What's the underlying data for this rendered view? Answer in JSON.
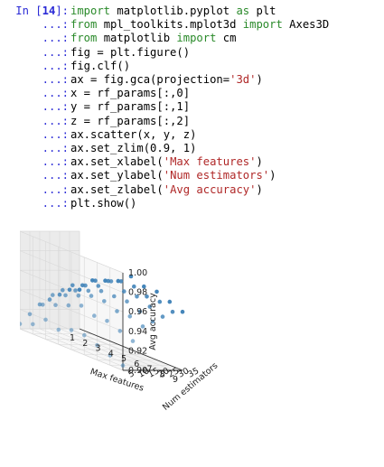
{
  "cell": {
    "input_prompt_prefix": "In [",
    "input_number": "14",
    "input_prompt_suffix": "]:",
    "continuation_prompt": "...:",
    "lines": [
      {
        "parts": [
          {
            "t": "import",
            "c": "kw"
          },
          {
            "t": " matplotlib.pyplot ",
            "c": ""
          },
          {
            "t": "as",
            "c": "kw"
          },
          {
            "t": " plt",
            "c": ""
          }
        ]
      },
      {
        "parts": [
          {
            "t": "from",
            "c": "kw"
          },
          {
            "t": " mpl_toolkits.mplot3d ",
            "c": ""
          },
          {
            "t": "import",
            "c": "kw"
          },
          {
            "t": " Axes3D",
            "c": ""
          }
        ]
      },
      {
        "parts": [
          {
            "t": "from",
            "c": "kw"
          },
          {
            "t": " matplotlib ",
            "c": ""
          },
          {
            "t": "import",
            "c": "kw"
          },
          {
            "t": " cm",
            "c": ""
          }
        ]
      },
      {
        "parts": [
          {
            "t": "fig = plt.figure()",
            "c": ""
          }
        ]
      },
      {
        "parts": [
          {
            "t": "fig.clf()",
            "c": ""
          }
        ]
      },
      {
        "parts": [
          {
            "t": "ax = fig.gca(projection=",
            "c": ""
          },
          {
            "t": "'3d'",
            "c": "str"
          },
          {
            "t": ")",
            "c": ""
          }
        ]
      },
      {
        "parts": [
          {
            "t": "x = rf_params[:,0]",
            "c": ""
          }
        ]
      },
      {
        "parts": [
          {
            "t": "y = rf_params[:,1]",
            "c": ""
          }
        ]
      },
      {
        "parts": [
          {
            "t": "z = rf_params[:,2]",
            "c": ""
          }
        ]
      },
      {
        "parts": [
          {
            "t": "ax.scatter(x, y, z)",
            "c": ""
          }
        ]
      },
      {
        "parts": [
          {
            "t": "ax.set_zlim(0.9, 1)",
            "c": ""
          }
        ]
      },
      {
        "parts": [
          {
            "t": "ax.set_xlabel(",
            "c": ""
          },
          {
            "t": "'Max features'",
            "c": "str"
          },
          {
            "t": ")",
            "c": ""
          }
        ]
      },
      {
        "parts": [
          {
            "t": "ax.set_ylabel(",
            "c": ""
          },
          {
            "t": "'Num estimators'",
            "c": "str"
          },
          {
            "t": ")",
            "c": ""
          }
        ]
      },
      {
        "parts": [
          {
            "t": "ax.set_zlabel(",
            "c": ""
          },
          {
            "t": "'Avg accuracy'",
            "c": "str"
          },
          {
            "t": ")",
            "c": ""
          }
        ]
      },
      {
        "parts": [
          {
            "t": "plt.show()",
            "c": ""
          }
        ]
      }
    ]
  },
  "colors": {
    "prompt": "#2a2ad6",
    "keyword": "#2a8a2a",
    "string": "#b02828",
    "marker": "#3b7fb6"
  },
  "chart_data": {
    "type": "scatter",
    "projection": "3d",
    "xlabel": "Max features",
    "ylabel": "Num estimators",
    "zlabel": "Avg accuracy",
    "x_ticks": [
      "1",
      "2",
      "3",
      "4",
      "5",
      "6",
      "7",
      "8",
      "9"
    ],
    "y_ticks": [
      "5",
      "10",
      "15",
      "20",
      "25",
      "30",
      "35"
    ],
    "z_ticks": [
      "0.90",
      "0.92",
      "0.94",
      "0.96",
      "0.98",
      "1.00"
    ],
    "xlim": [
      1,
      9
    ],
    "ylim": [
      5,
      35
    ],
    "zlim": [
      0.9,
      1.0
    ],
    "grid": true,
    "points": {
      "x": [
        1,
        1,
        1,
        1,
        1,
        1,
        1,
        2,
        2,
        2,
        2,
        2,
        2,
        2,
        3,
        3,
        3,
        3,
        3,
        3,
        3,
        4,
        4,
        4,
        4,
        4,
        4,
        4,
        5,
        5,
        5,
        5,
        5,
        5,
        5,
        6,
        6,
        6,
        6,
        6,
        6,
        6,
        7,
        7,
        7,
        7,
        7,
        7,
        7,
        8,
        8,
        8,
        8,
        8,
        8,
        8,
        9,
        9,
        9,
        9,
        9,
        9,
        9
      ],
      "y": [
        5,
        10,
        15,
        20,
        25,
        30,
        35,
        5,
        10,
        15,
        20,
        25,
        30,
        35,
        5,
        10,
        15,
        20,
        25,
        30,
        35,
        5,
        10,
        15,
        20,
        25,
        30,
        35,
        5,
        10,
        15,
        20,
        25,
        30,
        35,
        5,
        10,
        15,
        20,
        25,
        30,
        35,
        5,
        10,
        15,
        20,
        25,
        30,
        35,
        5,
        10,
        15,
        20,
        25,
        30,
        35,
        5,
        10,
        15,
        20,
        25,
        30,
        35
      ],
      "z": [
        0.905,
        0.915,
        0.925,
        0.93,
        0.935,
        0.94,
        0.94,
        0.91,
        0.93,
        0.94,
        0.945,
        0.95,
        0.95,
        0.955,
        0.92,
        0.935,
        0.945,
        0.95,
        0.955,
        0.96,
        0.96,
        0.915,
        0.94,
        0.95,
        0.955,
        0.96,
        0.965,
        0.965,
        0.92,
        0.945,
        0.955,
        0.96,
        0.97,
        0.97,
        0.975,
        0.92,
        0.94,
        0.955,
        0.96,
        0.965,
        0.97,
        0.97,
        0.915,
        0.94,
        0.95,
        0.96,
        0.965,
        0.965,
        0.97,
        0.91,
        0.935,
        0.95,
        0.955,
        0.96,
        0.965,
        0.965,
        0.905,
        0.93,
        0.945,
        0.95,
        0.955,
        0.96,
        0.96
      ]
    }
  }
}
